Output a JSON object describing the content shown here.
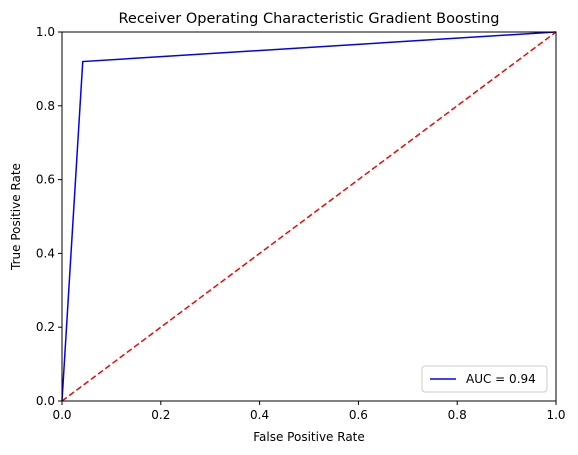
{
  "chart_data": {
    "type": "line",
    "title": "Receiver Operating Characteristic Gradient Boosting",
    "xlabel": "False Positive Rate",
    "ylabel": "True Positive Rate",
    "xlim": [
      0,
      1
    ],
    "ylim": [
      0,
      1
    ],
    "x_ticks": [
      "0.0",
      "0.2",
      "0.4",
      "0.6",
      "0.8",
      "1.0"
    ],
    "y_ticks": [
      "0.0",
      "0.2",
      "0.4",
      "0.6",
      "0.8",
      "1.0"
    ],
    "grid": false,
    "legend_position": "lower-right",
    "series": [
      {
        "name": "AUC = 0.94",
        "color": "#0000ff",
        "style": "solid",
        "x": [
          0.0,
          0.042,
          1.0
        ],
        "y": [
          0.0,
          0.92,
          1.0
        ]
      },
      {
        "color": "#ff0000",
        "style": "dashed",
        "x": [
          0.0,
          1.0
        ],
        "y": [
          0.0,
          1.0
        ]
      }
    ]
  }
}
